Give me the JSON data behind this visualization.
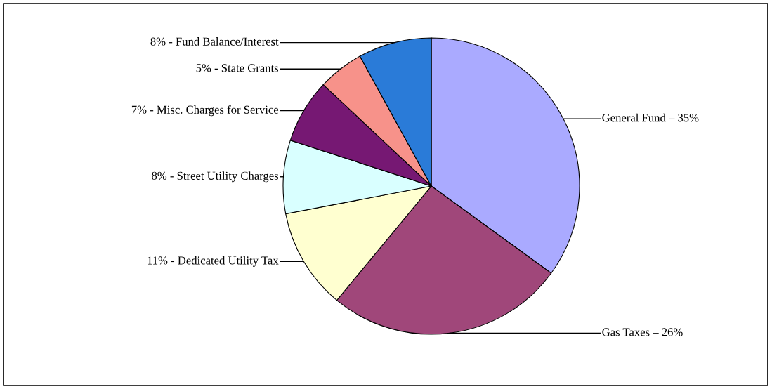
{
  "chart_data": {
    "type": "pie",
    "categories": [
      "General Fund – 35%",
      "Gas Taxes – 26%",
      "11% - Dedicated Utility Tax",
      "8% - Street Utility Charges",
      "7% - Misc. Charges for Service",
      "5% - State Grants",
      "8% - Fund Balance/Interest"
    ],
    "values": [
      35,
      26,
      11,
      8,
      7,
      5,
      8
    ],
    "colors": [
      "#aaaaff",
      "#a0477a",
      "#ffffd0",
      "#d9ffff",
      "#761873",
      "#f7928a",
      "#2a7bd8"
    ]
  }
}
